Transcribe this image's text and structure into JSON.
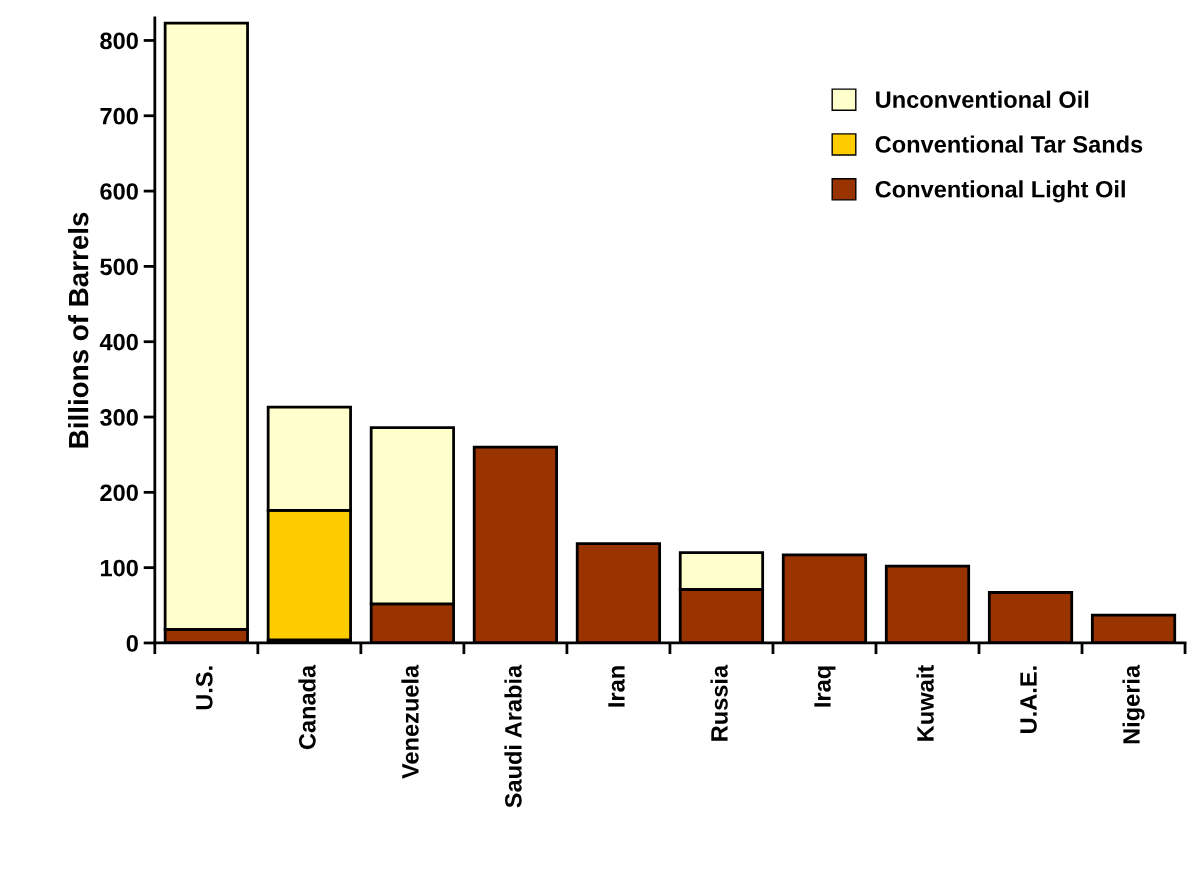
{
  "chart_data": {
    "type": "bar",
    "stacked": true,
    "ylabel": "Billions of Barrels",
    "categories": [
      "U.S.",
      "Canada",
      "Venezuela",
      "Saudi Arabia",
      "Iran",
      "Russia",
      "Iraq",
      "Kuwait",
      "U.A.E.",
      "Nigeria"
    ],
    "series": [
      {
        "name": "Conventional Light Oil",
        "color": "#993300",
        "values": [
          18,
          4,
          52,
          260,
          132,
          71,
          117,
          102,
          67,
          37
        ]
      },
      {
        "name": "Conventional Tar Sands",
        "color": "#ffcc00",
        "values": [
          null,
          172,
          null,
          null,
          null,
          null,
          null,
          null,
          null,
          null
        ]
      },
      {
        "name": "Unconventional Oil",
        "color": "#ffffcc",
        "values": [
          805,
          137,
          234,
          null,
          null,
          49,
          null,
          null,
          null,
          null
        ]
      }
    ],
    "ylim": [
      0,
      830
    ],
    "yticks": [
      0,
      100,
      200,
      300,
      400,
      500,
      600,
      700,
      800
    ],
    "grid": false,
    "legend": "top right"
  }
}
